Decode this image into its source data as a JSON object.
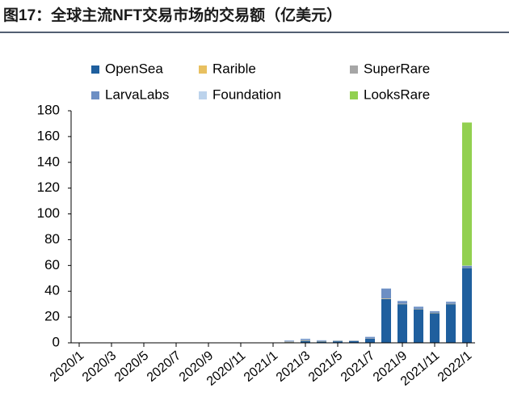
{
  "chart_data": {
    "type": "bar",
    "stacked": true,
    "title": "图17：全球主流NFT交易市场的交易额（亿美元）",
    "categories": [
      "2020/1",
      null,
      "2020/3",
      null,
      "2020/5",
      null,
      "2020/7",
      null,
      "2020/9",
      null,
      "2020/11",
      null,
      "2021/1",
      null,
      "2021/3",
      null,
      "2021/5",
      null,
      "2021/7",
      null,
      "2021/9",
      null,
      "2021/11",
      null,
      "2022/1"
    ],
    "series": [
      {
        "name": "OpenSea",
        "color": "#1f5f9e",
        "values": [
          0,
          0,
          0,
          0,
          0,
          0,
          0,
          0,
          0,
          0,
          0,
          0,
          0,
          0.5,
          1.5,
          1,
          1.2,
          1.3,
          3.2,
          34,
          30,
          26,
          23,
          30,
          58
        ]
      },
      {
        "name": "Rarible",
        "color": "#e8c060",
        "values": [
          0,
          0,
          0,
          0,
          0,
          0,
          0,
          0,
          0,
          0,
          0,
          0,
          0,
          0.3,
          0.3,
          0.2,
          0.2,
          0.1,
          0.1,
          0.3,
          0.2,
          0.2,
          0.2,
          0.2,
          0.1
        ]
      },
      {
        "name": "SuperRare",
        "color": "#a6a6a6",
        "values": [
          0,
          0,
          0,
          0,
          0,
          0,
          0,
          0,
          0,
          0,
          0,
          0,
          0,
          0.2,
          0.2,
          0.1,
          0.1,
          0.1,
          0.1,
          0.2,
          0.2,
          0.2,
          0.1,
          0.1,
          0.1
        ]
      },
      {
        "name": "LarvaLabs",
        "color": "#6d8fc4",
        "values": [
          0,
          0,
          0,
          0,
          0,
          0,
          0,
          0,
          0,
          0,
          0,
          0,
          0,
          0.7,
          1,
          0.5,
          0.3,
          0.3,
          1.2,
          7.5,
          2,
          1.5,
          1.2,
          1.5,
          1.5
        ]
      },
      {
        "name": "Foundation",
        "color": "#bcd3ec",
        "values": [
          0,
          0,
          0,
          0,
          0,
          0,
          0,
          0,
          0,
          0,
          0,
          0,
          0,
          0.2,
          0.3,
          0.3,
          0.2,
          0.1,
          0.2,
          0.3,
          0.3,
          0.3,
          0.2,
          0.3,
          0.2
        ]
      },
      {
        "name": "LooksRare",
        "color": "#92d050",
        "values": [
          0,
          0,
          0,
          0,
          0,
          0,
          0,
          0,
          0,
          0,
          0,
          0,
          0,
          0,
          0,
          0,
          0,
          0,
          0,
          0,
          0,
          0,
          0,
          0,
          111
        ]
      }
    ],
    "ylim": [
      0,
      180
    ],
    "yticks": [
      0,
      20,
      40,
      60,
      80,
      100,
      120,
      140,
      160,
      180
    ],
    "grid": false
  }
}
